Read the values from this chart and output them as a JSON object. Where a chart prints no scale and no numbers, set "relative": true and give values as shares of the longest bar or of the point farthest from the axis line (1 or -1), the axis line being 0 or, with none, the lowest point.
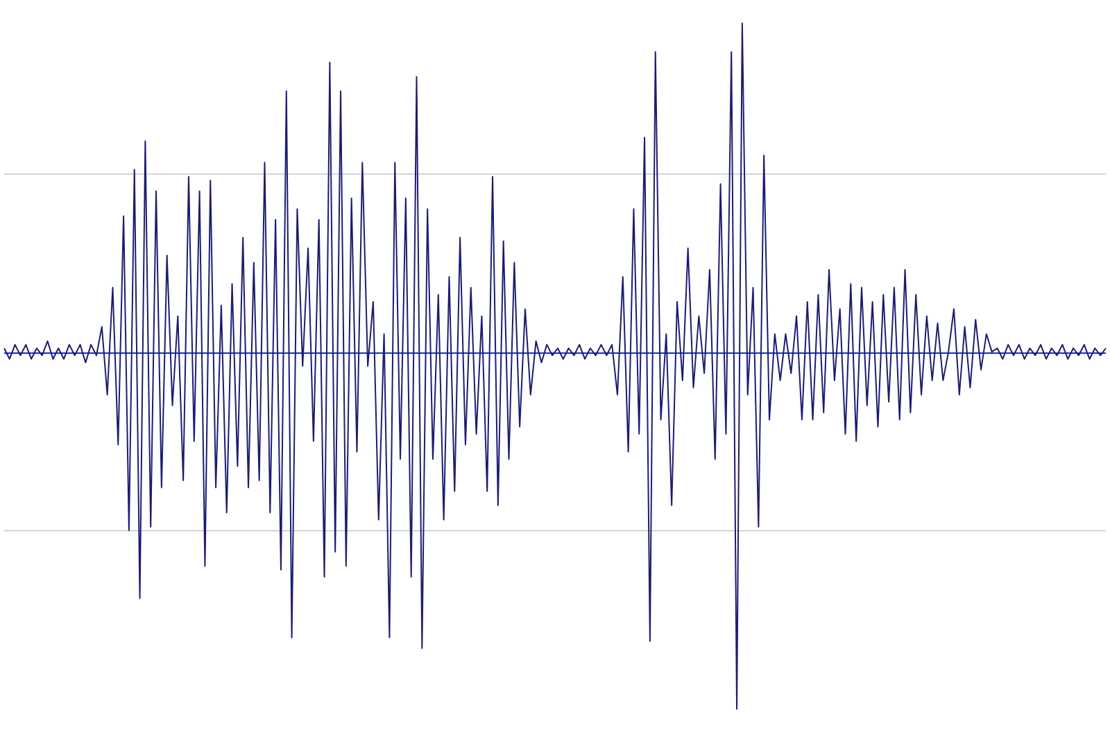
{
  "chart_data": {
    "type": "line",
    "relative": true,
    "legend": false,
    "ref_lines": [
      {
        "axis": "y",
        "value": 0.5,
        "color": "#d4d4d4"
      },
      {
        "axis": "y",
        "value": 0,
        "color": "#1030c8"
      },
      {
        "axis": "y",
        "value": -0.5,
        "color": "#d4d4d4"
      }
    ],
    "marker": "none",
    "line_style": "solid",
    "categories": [
      null,
      null,
      null,
      null,
      null,
      null,
      null,
      null,
      null,
      null,
      null,
      null,
      null,
      null,
      null,
      null,
      null,
      null,
      null,
      null,
      null,
      null,
      null,
      null,
      null,
      null,
      null,
      null,
      null,
      null,
      null,
      null,
      null,
      null,
      null,
      null,
      null,
      null,
      null,
      null,
      null,
      null,
      null,
      null,
      null,
      null,
      null,
      null,
      null,
      null,
      null,
      null,
      null,
      null,
      null,
      null,
      null,
      null,
      null,
      null,
      null,
      null,
      null,
      null,
      null,
      null,
      null,
      null,
      null,
      null,
      null,
      null,
      null,
      null,
      null,
      null,
      null,
      null,
      null,
      null,
      null,
      null,
      null,
      null,
      null,
      null,
      null,
      null,
      null,
      null,
      null,
      null,
      null,
      null,
      null,
      null,
      null,
      null,
      null,
      null,
      null,
      null,
      null,
      null,
      null,
      null,
      null,
      null,
      null,
      null,
      null,
      null,
      null,
      null,
      null,
      null,
      null,
      null,
      null,
      null,
      null,
      null,
      null,
      null,
      null,
      null,
      null,
      null,
      null,
      null,
      null,
      null,
      null,
      null,
      null,
      null,
      null,
      null,
      null,
      null,
      null,
      null,
      null,
      null,
      null,
      null,
      null,
      null,
      null,
      null,
      null,
      null,
      null,
      null,
      null,
      null,
      null,
      null,
      null,
      null,
      null,
      null,
      null,
      null,
      null,
      null,
      null,
      null,
      null,
      null,
      null,
      null,
      null,
      null,
      null,
      null,
      null,
      null,
      null,
      null,
      null,
      null,
      null,
      null,
      null,
      null,
      null,
      null,
      null,
      null,
      null,
      null,
      null,
      null,
      null,
      null,
      null,
      null,
      null,
      null,
      null,
      null,
      null,
      null
    ],
    "series": [
      {
        "color": "#1c1c72",
        "values": [
          0.01,
          -0.02,
          0.02,
          -0.01,
          0.02,
          -0.02,
          0.01,
          -0.01,
          0.03,
          -0.02,
          0.01,
          -0.02,
          0.02,
          -0.01,
          0.02,
          -0.03,
          0.02,
          -0.01,
          0.07,
          -0.12,
          0.18,
          -0.26,
          0.38,
          -0.5,
          0.51,
          -0.69,
          0.59,
          -0.49,
          0.45,
          -0.38,
          0.27,
          -0.15,
          0.1,
          -0.36,
          0.49,
          -0.25,
          0.45,
          -0.6,
          0.48,
          -0.38,
          0.13,
          -0.45,
          0.19,
          -0.32,
          0.32,
          -0.38,
          0.25,
          -0.36,
          0.53,
          -0.45,
          0.37,
          -0.61,
          0.73,
          -0.8,
          0.4,
          -0.04,
          0.29,
          -0.25,
          0.37,
          -0.63,
          0.81,
          -0.56,
          0.73,
          -0.6,
          0.43,
          -0.28,
          0.53,
          -0.04,
          0.14,
          -0.47,
          0.05,
          -0.8,
          0.53,
          -0.3,
          0.43,
          -0.63,
          0.77,
          -0.83,
          0.4,
          -0.3,
          0.16,
          -0.47,
          0.21,
          -0.39,
          0.32,
          -0.26,
          0.18,
          -0.23,
          0.1,
          -0.39,
          0.49,
          -0.43,
          0.31,
          -0.3,
          0.25,
          -0.21,
          0.12,
          -0.12,
          0.03,
          -0.03,
          0.02,
          -0.01,
          0.01,
          -0.02,
          0.01,
          -0.01,
          0.02,
          -0.02,
          0.01,
          -0.01,
          0.02,
          -0.01,
          0.02,
          -0.12,
          0.21,
          -0.28,
          0.4,
          -0.23,
          0.6,
          -0.81,
          0.84,
          -0.19,
          0.05,
          -0.43,
          0.14,
          -0.08,
          0.29,
          -0.1,
          0.1,
          -0.06,
          0.23,
          -0.3,
          0.47,
          -0.23,
          0.84,
          -1,
          0.92,
          -0.12,
          0.18,
          -0.49,
          0.55,
          -0.19,
          0.05,
          -0.08,
          0.05,
          -0.06,
          0.1,
          -0.19,
          0.14,
          -0.19,
          0.16,
          -0.17,
          0.23,
          -0.08,
          0.12,
          -0.23,
          0.19,
          -0.25,
          0.18,
          -0.15,
          0.14,
          -0.21,
          0.16,
          -0.14,
          0.18,
          -0.19,
          0.23,
          -0.17,
          0.16,
          -0.12,
          0.1,
          -0.08,
          0.08,
          -0.08,
          0.0,
          0.12,
          -0.12,
          0.07,
          -0.1,
          0.09,
          -0.05,
          0.05,
          0.0,
          0.01,
          -0.02,
          0.02,
          -0.01,
          0.02,
          -0.02,
          0.01,
          -0.01,
          0.02,
          -0.02,
          0.01,
          -0.01,
          0.02,
          -0.02,
          0.01,
          -0.01,
          0.02,
          -0.02,
          0.01,
          -0.01,
          0.01
        ]
      }
    ]
  }
}
